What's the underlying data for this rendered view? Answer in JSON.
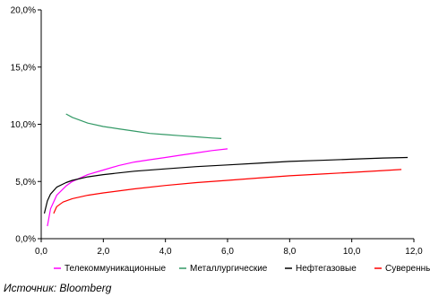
{
  "chart_data": {
    "type": "line",
    "xlim": [
      0,
      12
    ],
    "ylim": [
      0,
      20
    ],
    "x_ticks": [
      "0,0",
      "2,0",
      "4,0",
      "6,0",
      "8,0",
      "10,0",
      "12,0"
    ],
    "y_ticks": [
      "0,0%",
      "5,0%",
      "10,0%",
      "15,0%",
      "20,0%"
    ],
    "grid": false,
    "legend_position": "bottom",
    "series": [
      {
        "name": "Телекоммуникационные",
        "color": "#ff00ff",
        "x": [
          0.2,
          0.3,
          0.5,
          0.8,
          1.0,
          1.5,
          2.0,
          2.5,
          3.0,
          3.5,
          4.0,
          4.5,
          5.0,
          5.5,
          6.0
        ],
        "y": [
          1.1,
          2.6,
          3.8,
          4.6,
          5.0,
          5.6,
          6.0,
          6.4,
          6.7,
          6.9,
          7.1,
          7.3,
          7.5,
          7.7,
          7.85
        ]
      },
      {
        "name": "Металлургические",
        "color": "#339966",
        "x": [
          0.8,
          1.0,
          1.5,
          2.0,
          2.5,
          3.0,
          3.5,
          4.0,
          4.5,
          5.0,
          5.5,
          5.8
        ],
        "y": [
          10.9,
          10.6,
          10.1,
          9.8,
          9.6,
          9.4,
          9.2,
          9.1,
          9.0,
          8.9,
          8.8,
          8.75
        ]
      },
      {
        "name": "Нефтегазовые",
        "color": "#000000",
        "x": [
          0.1,
          0.2,
          0.3,
          0.5,
          0.8,
          1.0,
          1.5,
          2.0,
          3.0,
          4.0,
          5.0,
          6.0,
          7.0,
          8.0,
          9.0,
          10.0,
          11.0,
          11.8
        ],
        "y": [
          2.2,
          3.3,
          3.9,
          4.5,
          4.9,
          5.1,
          5.4,
          5.6,
          5.9,
          6.1,
          6.3,
          6.45,
          6.6,
          6.75,
          6.85,
          6.95,
          7.05,
          7.1
        ]
      },
      {
        "name": "Суверенные",
        "color": "#ff0000",
        "x": [
          0.4,
          0.5,
          0.7,
          1.0,
          1.5,
          2.0,
          3.0,
          4.0,
          5.0,
          6.0,
          7.0,
          8.0,
          9.0,
          10.0,
          11.0,
          11.6
        ],
        "y": [
          2.2,
          2.8,
          3.2,
          3.5,
          3.8,
          4.0,
          4.35,
          4.65,
          4.9,
          5.1,
          5.3,
          5.5,
          5.65,
          5.8,
          5.95,
          6.05
        ]
      }
    ]
  },
  "source": "Источник: Bloomberg"
}
